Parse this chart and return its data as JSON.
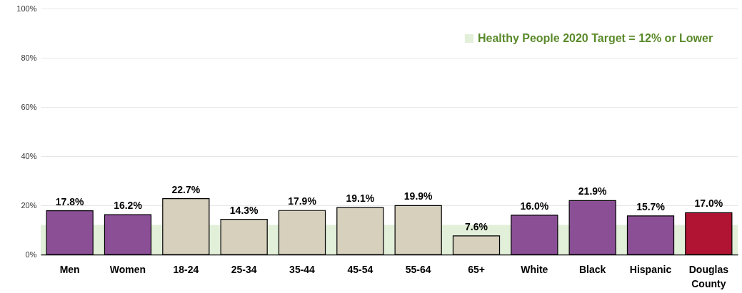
{
  "chart_data": {
    "type": "bar",
    "categories": [
      "Men",
      "Women",
      "18-24",
      "25-34",
      "35-44",
      "45-54",
      "55-64",
      "65+",
      "White",
      "Black",
      "Hispanic",
      "Douglas County"
    ],
    "values": [
      17.8,
      16.2,
      22.7,
      14.3,
      17.9,
      19.1,
      19.9,
      7.6,
      16.0,
      21.9,
      15.7,
      17.0
    ],
    "colors": [
      "#8b4f96",
      "#8b4f96",
      "#d6d0bd",
      "#d6d0bd",
      "#d6d0bd",
      "#d6d0bd",
      "#d6d0bd",
      "#d6d0bd",
      "#8b4f96",
      "#8b4f96",
      "#8b4f96",
      "#b01432"
    ],
    "value_labels": [
      "17.8%",
      "16.2%",
      "22.7%",
      "14.3%",
      "17.9%",
      "19.1%",
      "19.9%",
      "7.6%",
      "16.0%",
      "21.9%",
      "15.7%",
      "17.0%"
    ],
    "ylim": [
      0,
      100
    ],
    "yticks": [
      {
        "value": 0,
        "label": "0%"
      },
      {
        "value": 20,
        "label": "20%"
      },
      {
        "value": 40,
        "label": "40%"
      },
      {
        "value": 60,
        "label": "60%"
      },
      {
        "value": 80,
        "label": "80%"
      },
      {
        "value": 100,
        "label": "100%"
      }
    ],
    "bands": [
      {
        "axis": "y",
        "from": 0,
        "to": 12,
        "label": "Healthy People 2020 Target = 12% or Lower",
        "color": "#e2efd9"
      }
    ],
    "grid": "y",
    "legend": "top right"
  }
}
